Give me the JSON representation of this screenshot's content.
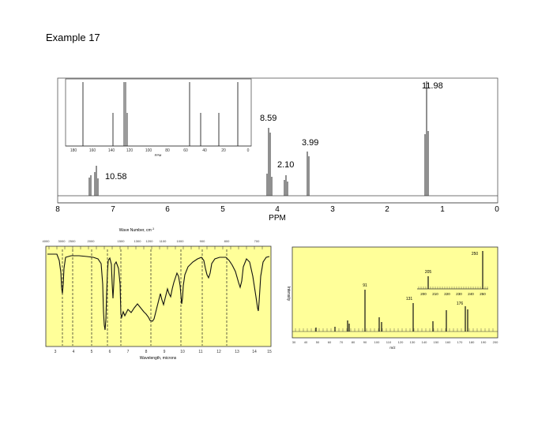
{
  "title": "Example 17",
  "nmr": {
    "xlabel": "PPM",
    "xticks": [
      "8",
      "7",
      "6",
      "5",
      "4",
      "3",
      "2",
      "1",
      "0"
    ],
    "peak_labels": {
      "p1198": "11.98",
      "p859": "8.59",
      "p399": "3.99",
      "p210": "2.10",
      "p1058": "10.58"
    },
    "inset": {
      "xlabel": "PPM",
      "xticks": [
        "180",
        "160",
        "140",
        "120",
        "100",
        "80",
        "60",
        "40",
        "20",
        "0"
      ]
    }
  },
  "ir": {
    "top_label": "Wave Number, cm",
    "top_label_sup": "-1",
    "top_ticks": [
      "4000",
      "3000",
      "2500",
      "2000",
      "1500",
      "1300",
      "1200",
      "1100",
      "1000",
      "900",
      "800",
      "700"
    ],
    "bottom_label": "Wavelength, microns",
    "bottom_ticks": [
      "3",
      "4",
      "5",
      "6",
      "7",
      "8",
      "9",
      "10",
      "11",
      "12",
      "13",
      "14",
      "15"
    ],
    "fill_color": "#ffff99"
  },
  "ms": {
    "ylabel": "Intensity",
    "xlabel": "m/z",
    "xticks": [
      "30",
      "40",
      "50",
      "60",
      "70",
      "80",
      "90",
      "100",
      "110",
      "120",
      "130",
      "140",
      "150",
      "160",
      "170",
      "180",
      "190",
      "200"
    ],
    "inset_ticks": [
      "200",
      "210",
      "220",
      "230",
      "240",
      "250"
    ],
    "peak_labels": {
      "p91": "91",
      "p131": "131",
      "p176": "176",
      "p205": "205",
      "p250": "250"
    },
    "fill_color": "#ffff99"
  }
}
